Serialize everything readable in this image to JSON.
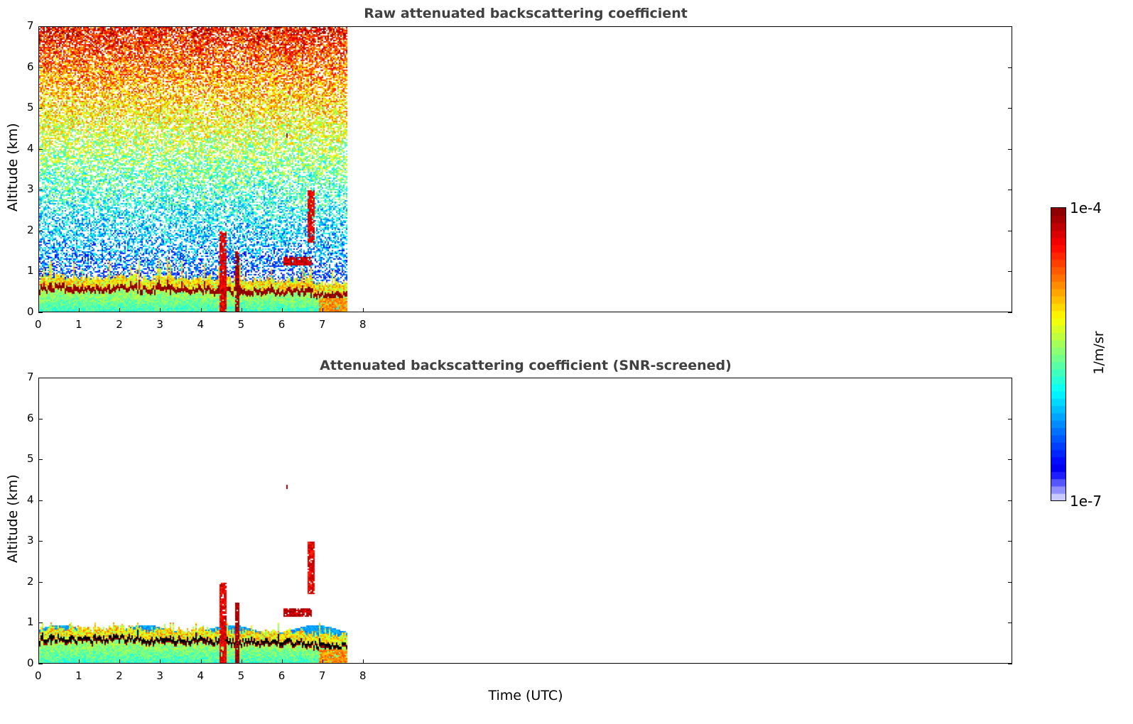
{
  "chart_data": [
    {
      "type": "heatmap",
      "title": "Raw attenuated backscattering coefficient",
      "xlabel": "",
      "ylabel": "Altitude (km)",
      "xlim": [
        0,
        24
      ],
      "ylim": [
        0,
        7
      ],
      "xticks": [
        0,
        1,
        2,
        3,
        4,
        5,
        6,
        7,
        8
      ],
      "yticks": [
        0,
        1,
        2,
        3,
        4,
        5,
        6,
        7
      ],
      "screened": false
    },
    {
      "type": "heatmap",
      "title": "Attenuated backscattering coefficient (SNR-screened)",
      "xlabel": "Time (UTC)",
      "ylabel": "Altitude (km)",
      "xlim": [
        0,
        24
      ],
      "ylim": [
        0,
        7
      ],
      "xticks": [
        0,
        1,
        2,
        3,
        4,
        5,
        6,
        7,
        8
      ],
      "yticks": [
        0,
        1,
        2,
        3,
        4,
        5,
        6,
        7
      ],
      "screened": true
    }
  ],
  "field": {
    "data_end_time_utc": 7.6,
    "boundary_layer_top_km": {
      "t": [
        0,
        0.5,
        1,
        1.5,
        2,
        2.5,
        3,
        3.5,
        4,
        4.5,
        5,
        5.5,
        6,
        6.5,
        7,
        7.5,
        7.6
      ],
      "z": [
        0.5,
        0.55,
        0.5,
        0.5,
        0.55,
        0.5,
        0.5,
        0.5,
        0.5,
        0.45,
        0.45,
        0.45,
        0.45,
        0.45,
        0.35,
        0.35,
        0.4
      ]
    },
    "features": [
      {
        "name": "plume",
        "t0": 4.45,
        "t1": 4.6,
        "z0": 0,
        "z1": 2.0,
        "log_value": -4.3
      },
      {
        "name": "plume",
        "t0": 4.83,
        "t1": 4.92,
        "z0": 0,
        "z1": 1.5,
        "log_value": -4.1
      },
      {
        "name": "cloud",
        "t0": 6.0,
        "t1": 6.7,
        "z0": 1.15,
        "z1": 1.35,
        "log_value": -4.2
      },
      {
        "name": "aerosol",
        "t0": 6.9,
        "t1": 7.6,
        "z0": 0,
        "z1": 0.35,
        "log_value": -4.8
      },
      {
        "name": "cloud",
        "t0": 6.6,
        "t1": 6.8,
        "z0": 1.7,
        "z1": 3.0,
        "log_value": -4.3
      },
      {
        "name": "cloud",
        "t0": 6.08,
        "t1": 6.12,
        "z0": 4.3,
        "z1": 4.4,
        "log_value": -4.0
      }
    ]
  },
  "colorbar": {
    "label": "1/m/sr",
    "max_label": "1e-4",
    "min_label": "1e-7",
    "log_min": -7,
    "log_max": -4
  }
}
